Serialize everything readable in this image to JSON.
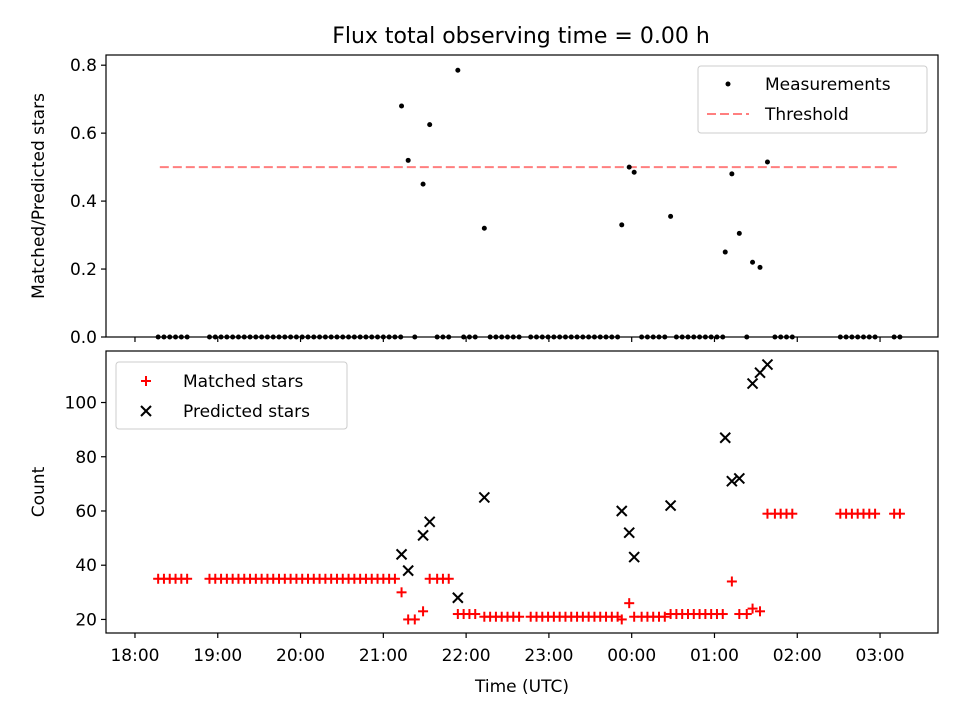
{
  "title": "Flux total observing time = 0.00 h",
  "chart_data": [
    {
      "type": "scatter",
      "panel": "top",
      "ylabel": "Matched/Predicted stars",
      "ylim": [
        0,
        0.83
      ],
      "yticks": [
        0,
        0.2,
        0.4,
        0.6,
        0.8
      ],
      "ytick_labels": [
        "0.0",
        "0.2",
        "0.4",
        "0.6",
        "0.8"
      ],
      "xlim": [
        -0.35,
        9.7
      ],
      "xticks": [
        0,
        1,
        2,
        3,
        4,
        5,
        6,
        7,
        8,
        9
      ],
      "legend": {
        "position": "upper-right",
        "entries": [
          "Measurements",
          "Threshold"
        ]
      },
      "threshold": {
        "name": "Threshold",
        "value": 0.5,
        "x_range": [
          0.3,
          9.25
        ],
        "color": "#ff7f7f"
      },
      "series": [
        {
          "name": "Measurements",
          "color": "#000000",
          "points": [
            [
              0.28,
              0
            ],
            [
              0.35,
              0
            ],
            [
              0.42,
              0
            ],
            [
              0.49,
              0
            ],
            [
              0.56,
              0
            ],
            [
              0.63,
              0
            ],
            [
              0.9,
              0
            ],
            [
              0.97,
              0
            ],
            [
              1.04,
              0
            ],
            [
              1.11,
              0
            ],
            [
              1.18,
              0
            ],
            [
              1.25,
              0
            ],
            [
              1.32,
              0
            ],
            [
              1.39,
              0
            ],
            [
              1.46,
              0
            ],
            [
              1.53,
              0
            ],
            [
              1.6,
              0
            ],
            [
              1.67,
              0
            ],
            [
              1.74,
              0
            ],
            [
              1.81,
              0
            ],
            [
              1.88,
              0
            ],
            [
              1.95,
              0
            ],
            [
              2.02,
              0
            ],
            [
              2.09,
              0
            ],
            [
              2.16,
              0
            ],
            [
              2.23,
              0
            ],
            [
              2.3,
              0
            ],
            [
              2.37,
              0
            ],
            [
              2.44,
              0
            ],
            [
              2.51,
              0
            ],
            [
              2.58,
              0
            ],
            [
              2.65,
              0
            ],
            [
              2.72,
              0
            ],
            [
              2.79,
              0
            ],
            [
              2.86,
              0
            ],
            [
              2.93,
              0
            ],
            [
              3.0,
              0
            ],
            [
              3.07,
              0
            ],
            [
              3.14,
              0
            ],
            [
              3.21,
              0
            ],
            [
              3.22,
              0.68
            ],
            [
              3.3,
              0.52
            ],
            [
              3.48,
              0.45
            ],
            [
              3.56,
              0.625
            ],
            [
              3.9,
              0.785
            ],
            [
              4.22,
              0.32
            ],
            [
              3.38,
              0
            ],
            [
              3.65,
              0
            ],
            [
              3.72,
              0
            ],
            [
              3.79,
              0
            ],
            [
              3.97,
              0
            ],
            [
              4.04,
              0
            ],
            [
              4.11,
              0
            ],
            [
              4.29,
              0
            ],
            [
              4.36,
              0
            ],
            [
              4.43,
              0
            ],
            [
              4.5,
              0
            ],
            [
              4.57,
              0
            ],
            [
              4.64,
              0
            ],
            [
              4.78,
              0
            ],
            [
              4.85,
              0
            ],
            [
              4.92,
              0
            ],
            [
              4.99,
              0
            ],
            [
              5.06,
              0
            ],
            [
              5.13,
              0
            ],
            [
              5.2,
              0
            ],
            [
              5.27,
              0
            ],
            [
              5.34,
              0
            ],
            [
              5.41,
              0
            ],
            [
              5.48,
              0
            ],
            [
              5.55,
              0
            ],
            [
              5.62,
              0
            ],
            [
              5.69,
              0
            ],
            [
              5.76,
              0
            ],
            [
              5.83,
              0
            ],
            [
              5.88,
              0.33
            ],
            [
              5.97,
              0.5
            ],
            [
              6.03,
              0.485
            ],
            [
              6.47,
              0.355
            ],
            [
              6.12,
              0
            ],
            [
              6.19,
              0
            ],
            [
              6.26,
              0
            ],
            [
              6.33,
              0
            ],
            [
              6.4,
              0
            ],
            [
              6.54,
              0
            ],
            [
              6.61,
              0
            ],
            [
              6.68,
              0
            ],
            [
              6.75,
              0
            ],
            [
              6.82,
              0
            ],
            [
              6.89,
              0
            ],
            [
              6.96,
              0
            ],
            [
              7.03,
              0
            ],
            [
              7.1,
              0
            ],
            [
              7.13,
              0.25
            ],
            [
              7.21,
              0.48
            ],
            [
              7.3,
              0.305
            ],
            [
              7.39,
              0
            ],
            [
              7.46,
              0.22
            ],
            [
              7.55,
              0.205
            ],
            [
              7.64,
              0.515
            ],
            [
              7.73,
              0
            ],
            [
              7.8,
              0
            ],
            [
              7.87,
              0
            ],
            [
              7.94,
              0
            ],
            [
              8.52,
              0
            ],
            [
              8.59,
              0
            ],
            [
              8.66,
              0
            ],
            [
              8.73,
              0
            ],
            [
              8.8,
              0
            ],
            [
              8.87,
              0
            ],
            [
              8.94,
              0
            ],
            [
              9.17,
              0
            ],
            [
              9.24,
              0
            ]
          ]
        }
      ]
    },
    {
      "type": "scatter",
      "panel": "bottom",
      "xlabel": "Time (UTC)",
      "ylabel": "Count",
      "ylim": [
        15,
        119
      ],
      "yticks": [
        20,
        40,
        60,
        80,
        100
      ],
      "ytick_labels": [
        "20",
        "40",
        "60",
        "80",
        "100"
      ],
      "xlim": [
        -0.35,
        9.7
      ],
      "xticks": [
        0,
        1,
        2,
        3,
        4,
        5,
        6,
        7,
        8,
        9
      ],
      "xtick_labels": [
        "18:00",
        "19:00",
        "20:00",
        "21:00",
        "22:00",
        "23:00",
        "00:00",
        "01:00",
        "02:00",
        "03:00"
      ],
      "legend": {
        "position": "upper-left",
        "entries": [
          "Matched stars",
          "Predicted stars"
        ]
      },
      "series": [
        {
          "name": "Matched stars",
          "color": "#ff0000",
          "marker": "plus",
          "points": [
            [
              0.28,
              35
            ],
            [
              0.35,
              35
            ],
            [
              0.42,
              35
            ],
            [
              0.49,
              35
            ],
            [
              0.56,
              35
            ],
            [
              0.63,
              35
            ],
            [
              0.9,
              35
            ],
            [
              0.97,
              35
            ],
            [
              1.04,
              35
            ],
            [
              1.11,
              35
            ],
            [
              1.18,
              35
            ],
            [
              1.25,
              35
            ],
            [
              1.32,
              35
            ],
            [
              1.39,
              35
            ],
            [
              1.46,
              35
            ],
            [
              1.53,
              35
            ],
            [
              1.6,
              35
            ],
            [
              1.67,
              35
            ],
            [
              1.74,
              35
            ],
            [
              1.81,
              35
            ],
            [
              1.88,
              35
            ],
            [
              1.95,
              35
            ],
            [
              2.02,
              35
            ],
            [
              2.09,
              35
            ],
            [
              2.16,
              35
            ],
            [
              2.23,
              35
            ],
            [
              2.3,
              35
            ],
            [
              2.37,
              35
            ],
            [
              2.44,
              35
            ],
            [
              2.51,
              35
            ],
            [
              2.58,
              35
            ],
            [
              2.65,
              35
            ],
            [
              2.72,
              35
            ],
            [
              2.79,
              35
            ],
            [
              2.86,
              35
            ],
            [
              2.93,
              35
            ],
            [
              3.0,
              35
            ],
            [
              3.07,
              35
            ],
            [
              3.14,
              35
            ],
            [
              3.22,
              30
            ],
            [
              3.3,
              20
            ],
            [
              3.38,
              20
            ],
            [
              3.48,
              23
            ],
            [
              3.56,
              35
            ],
            [
              3.65,
              35
            ],
            [
              3.72,
              35
            ],
            [
              3.79,
              35
            ],
            [
              3.9,
              22
            ],
            [
              3.97,
              22
            ],
            [
              4.04,
              22
            ],
            [
              4.11,
              22
            ],
            [
              4.22,
              21
            ],
            [
              4.29,
              21
            ],
            [
              4.36,
              21
            ],
            [
              4.43,
              21
            ],
            [
              4.5,
              21
            ],
            [
              4.57,
              21
            ],
            [
              4.64,
              21
            ],
            [
              4.78,
              21
            ],
            [
              4.85,
              21
            ],
            [
              4.92,
              21
            ],
            [
              4.99,
              21
            ],
            [
              5.06,
              21
            ],
            [
              5.13,
              21
            ],
            [
              5.2,
              21
            ],
            [
              5.27,
              21
            ],
            [
              5.34,
              21
            ],
            [
              5.41,
              21
            ],
            [
              5.48,
              21
            ],
            [
              5.55,
              21
            ],
            [
              5.62,
              21
            ],
            [
              5.69,
              21
            ],
            [
              5.76,
              21
            ],
            [
              5.83,
              21
            ],
            [
              5.88,
              20
            ],
            [
              5.97,
              26
            ],
            [
              6.03,
              21
            ],
            [
              6.12,
              21
            ],
            [
              6.19,
              21
            ],
            [
              6.26,
              21
            ],
            [
              6.33,
              21
            ],
            [
              6.4,
              21
            ],
            [
              6.47,
              22
            ],
            [
              6.54,
              22
            ],
            [
              6.61,
              22
            ],
            [
              6.68,
              22
            ],
            [
              6.75,
              22
            ],
            [
              6.82,
              22
            ],
            [
              6.89,
              22
            ],
            [
              6.96,
              22
            ],
            [
              7.03,
              22
            ],
            [
              7.1,
              22
            ],
            [
              7.21,
              34
            ],
            [
              7.3,
              22
            ],
            [
              7.39,
              22
            ],
            [
              7.46,
              24
            ],
            [
              7.55,
              23
            ],
            [
              7.64,
              59
            ],
            [
              7.73,
              59
            ],
            [
              7.8,
              59
            ],
            [
              7.87,
              59
            ],
            [
              7.94,
              59
            ],
            [
              8.52,
              59
            ],
            [
              8.59,
              59
            ],
            [
              8.66,
              59
            ],
            [
              8.73,
              59
            ],
            [
              8.8,
              59
            ],
            [
              8.87,
              59
            ],
            [
              8.94,
              59
            ],
            [
              9.17,
              59
            ],
            [
              9.24,
              59
            ]
          ]
        },
        {
          "name": "Predicted stars",
          "color": "#000000",
          "marker": "x",
          "points": [
            [
              3.22,
              44
            ],
            [
              3.3,
              38
            ],
            [
              3.48,
              51
            ],
            [
              3.56,
              56
            ],
            [
              3.9,
              28
            ],
            [
              4.22,
              65
            ],
            [
              5.88,
              60
            ],
            [
              5.97,
              52
            ],
            [
              6.03,
              43
            ],
            [
              6.47,
              62
            ],
            [
              7.13,
              87
            ],
            [
              7.21,
              71
            ],
            [
              7.3,
              72
            ],
            [
              7.46,
              107
            ],
            [
              7.55,
              111
            ],
            [
              7.64,
              114
            ]
          ]
        }
      ]
    }
  ]
}
